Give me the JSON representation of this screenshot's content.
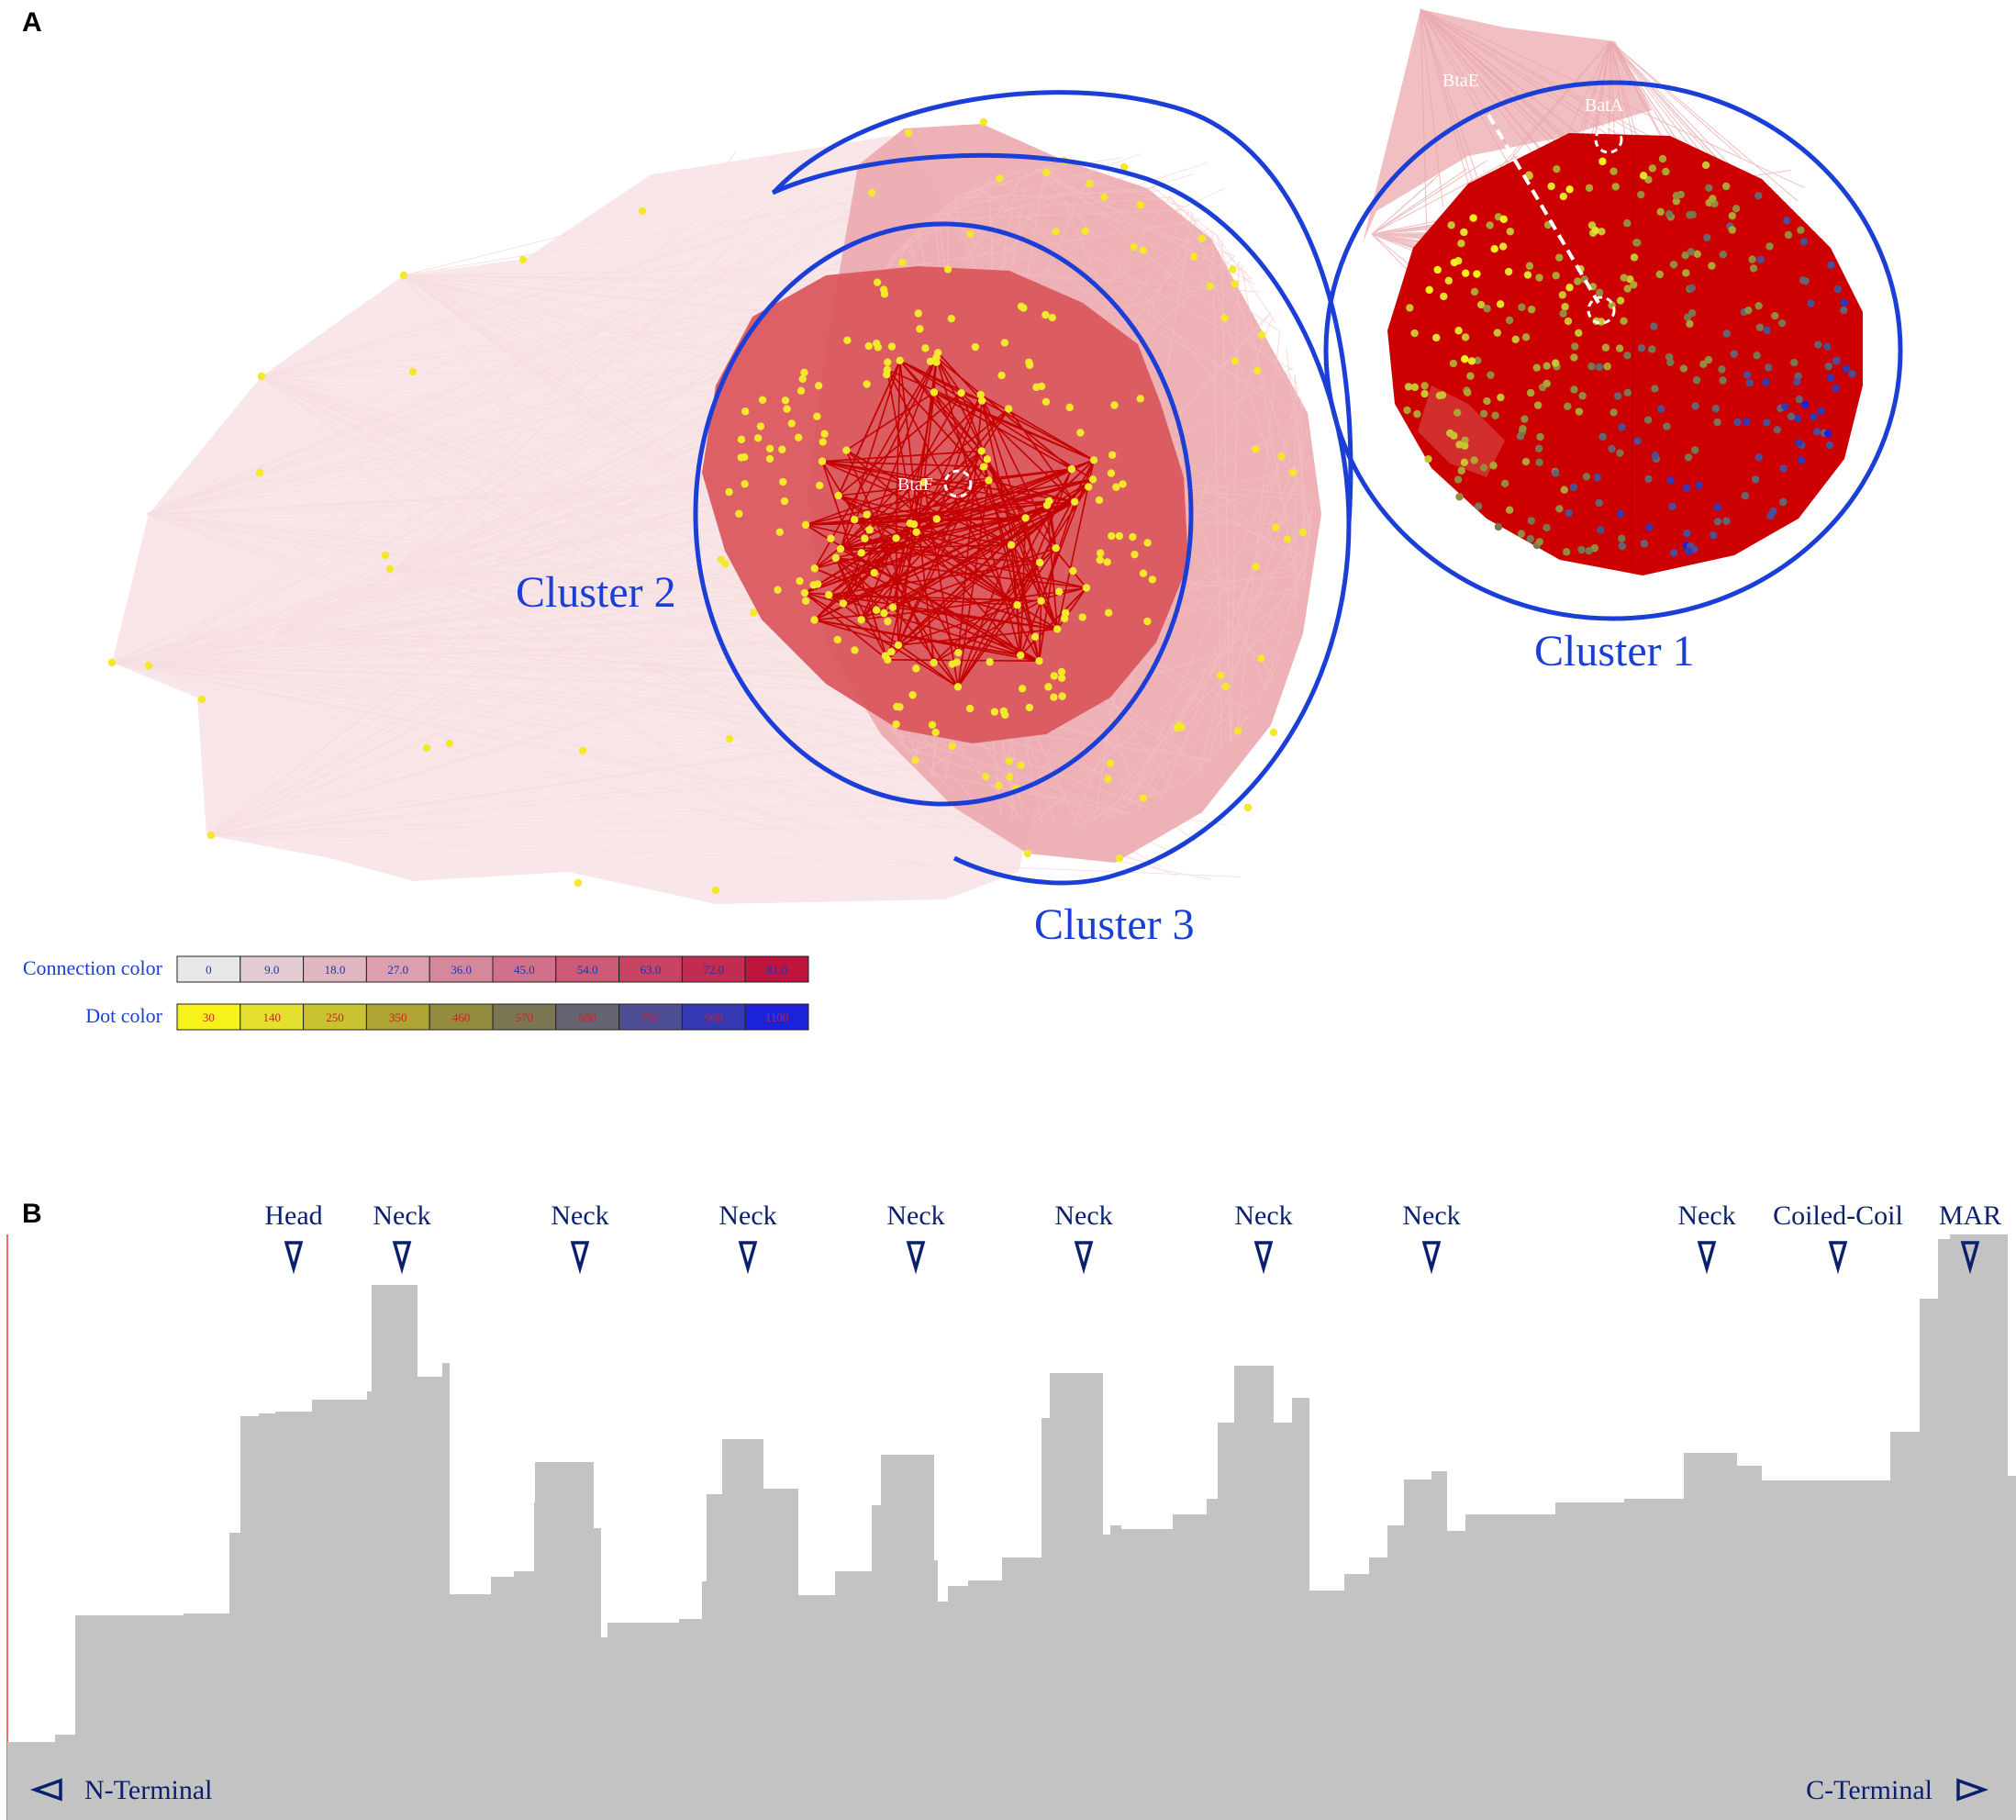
{
  "panels": {
    "a": {
      "letter": "A",
      "clusters": [
        {
          "id": "cluster-1",
          "label": "Cluster 1"
        },
        {
          "id": "cluster-2",
          "label": "Cluster 2"
        },
        {
          "id": "cluster-3",
          "label": "Cluster 3"
        }
      ],
      "nodes": [
        {
          "id": "btae",
          "label": "BtaE"
        },
        {
          "id": "bata",
          "label": "BatA"
        },
        {
          "id": "btaf",
          "label": "BtaF"
        }
      ],
      "legend": {
        "connection": {
          "title": "Connection color",
          "cells": [
            {
              "label": "0",
              "color": "#e8e8e8",
              "text_color": "#2233aa"
            },
            {
              "label": "9.0",
              "color": "#e4cdd2",
              "text_color": "#2233aa"
            },
            {
              "label": "18.0",
              "color": "#e0b6c0",
              "text_color": "#2233aa"
            },
            {
              "label": "27.0",
              "color": "#db9fad",
              "text_color": "#2233aa"
            },
            {
              "label": "36.0",
              "color": "#d6889b",
              "text_color": "#2233aa"
            },
            {
              "label": "45.0",
              "color": "#d17189",
              "text_color": "#2233aa"
            },
            {
              "label": "54.0",
              "color": "#cc5a76",
              "text_color": "#2233aa"
            },
            {
              "label": "63.0",
              "color": "#c84364",
              "text_color": "#2233aa"
            },
            {
              "label": "72.0",
              "color": "#c32c51",
              "text_color": "#2233aa"
            },
            {
              "label": "81.0",
              "color": "#be153f",
              "text_color": "#2233aa"
            }
          ]
        },
        "dot": {
          "title": "Dot color",
          "cells": [
            {
              "label": "30",
              "color": "#f7f21a",
              "text_color": "#cc2222"
            },
            {
              "label": "140",
              "color": "#e5e030",
              "text_color": "#cc2222"
            },
            {
              "label": "250",
              "color": "#c9c231",
              "text_color": "#cc2222"
            },
            {
              "label": "350",
              "color": "#ada434",
              "text_color": "#cc2222"
            },
            {
              "label": "460",
              "color": "#938c3f",
              "text_color": "#cc2222"
            },
            {
              "label": "570",
              "color": "#7a7654",
              "text_color": "#cc2222"
            },
            {
              "label": "680",
              "color": "#666473",
              "text_color": "#cc2222"
            },
            {
              "label": "790",
              "color": "#4d4e93",
              "text_color": "#cc2222"
            },
            {
              "label": "900",
              "color": "#3538b3",
              "text_color": "#cc2222"
            },
            {
              "label": "1100",
              "color": "#1c22d9",
              "text_color": "#cc2222"
            }
          ]
        }
      }
    },
    "b": {
      "letter": "B",
      "domains": [
        {
          "label": "Head"
        },
        {
          "label": "Neck"
        },
        {
          "label": "Neck"
        },
        {
          "label": "Neck"
        },
        {
          "label": "Neck"
        },
        {
          "label": "Neck"
        },
        {
          "label": "Neck"
        },
        {
          "label": "Neck"
        },
        {
          "label": "Neck"
        },
        {
          "label": "Coiled-Coil"
        },
        {
          "label": "MAR"
        }
      ],
      "n_terminal": "N-Terminal",
      "c_terminal": "C-Terminal"
    }
  },
  "colors": {
    "cluster_ring": "#1b3fd6",
    "domain_text": "#0a1f6e",
    "profile_fill": "#c3c3c3",
    "dense_cluster": "#cc0000",
    "pale_edges": "#f3d3d6"
  }
}
